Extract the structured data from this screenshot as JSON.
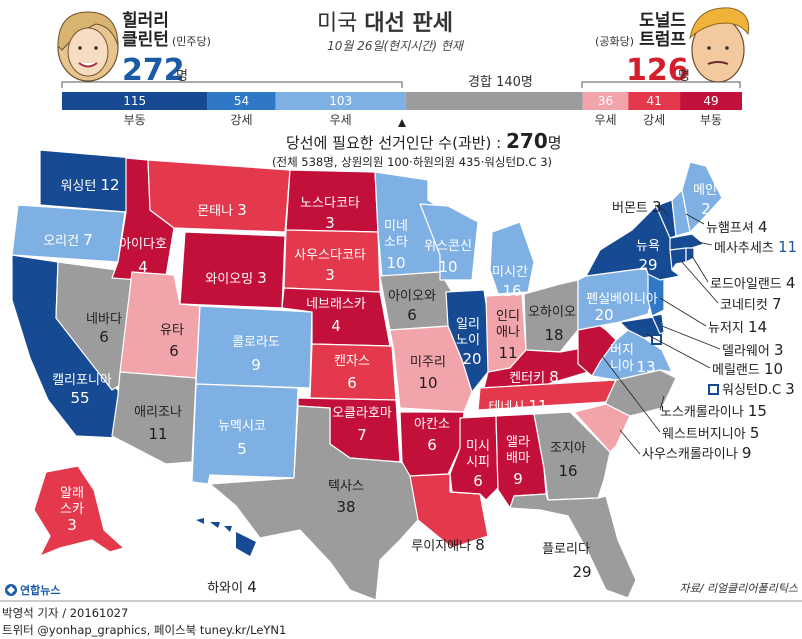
{
  "title": {
    "prefix": "미국",
    "main": "대선 판세"
  },
  "subtitle": "10월 26일(현지시간) 현재",
  "candidates": {
    "dem": {
      "name_line1": "힐러리",
      "name_line2": "클린턴",
      "party": "(민주당)",
      "votes": "272",
      "unit": "명"
    },
    "rep": {
      "name_line1": "도널드",
      "name_line2": "트럼프",
      "party": "(공화당)",
      "votes": "126",
      "unit": "명"
    }
  },
  "toss_up": {
    "label": "경합",
    "value": "140",
    "unit": "명"
  },
  "colors": {
    "solid_dem": "#164a93",
    "likely_dem": "#2f78c8",
    "lean_dem": "#7fb0e3",
    "tossup": "#9c9c9c",
    "lean_rep": "#f2a4ab",
    "likely_rep": "#e4394c",
    "solid_rep": "#c3103a"
  },
  "bar": [
    {
      "key": "solid_dem",
      "value": "115",
      "label": "부동"
    },
    {
      "key": "likely_dem",
      "value": "54",
      "label": "강세"
    },
    {
      "key": "lean_dem",
      "value": "103",
      "label": "우세"
    },
    {
      "key": "tossup",
      "value": "140",
      "label": ""
    },
    {
      "key": "lean_rep",
      "value": "36",
      "label": "우세"
    },
    {
      "key": "likely_rep",
      "value": "41",
      "label": "강세"
    },
    {
      "key": "solid_rep",
      "value": "49",
      "label": "부동"
    }
  ],
  "needed": {
    "text": "당선에 필요한 선거인단 수(과반) :",
    "value": "270",
    "unit": "명",
    "detail": "(전체 538명, 상원의원 100·하원의원 435·워싱턴D.C 3)"
  },
  "states": {
    "wa": {
      "name": "워싱턴",
      "ev": "12"
    },
    "or": {
      "name": "오리건",
      "ev": "7"
    },
    "ca": {
      "name": "캘리포니아",
      "ev": "55"
    },
    "nv": {
      "name": "네바다",
      "ev": "6"
    },
    "id": {
      "name": "아이다호",
      "ev": "4"
    },
    "mt": {
      "name": "몬태나",
      "ev": "3"
    },
    "wy": {
      "name": "와이오밍",
      "ev": "3"
    },
    "ut": {
      "name": "유타",
      "ev": "6"
    },
    "az": {
      "name": "애리조나",
      "ev": "11"
    },
    "co": {
      "name": "콜로라도",
      "ev": "9"
    },
    "nm": {
      "name": "뉴멕시코",
      "ev": "5"
    },
    "nd": {
      "name": "노스다코타",
      "ev": "3"
    },
    "sd": {
      "name": "사우스다코타",
      "ev": "3"
    },
    "ne": {
      "name": "네브래스카",
      "ev": "4"
    },
    "ks": {
      "name": "캔자스",
      "ev": "6"
    },
    "ok": {
      "name": "오클라호마",
      "ev": "7"
    },
    "tx": {
      "name": "텍사스",
      "ev": "38"
    },
    "mn": {
      "name": "미네소타",
      "ev": "10"
    },
    "ia": {
      "name": "아이오와",
      "ev": "6"
    },
    "mo": {
      "name": "미주리",
      "ev": "10"
    },
    "ar": {
      "name": "아칸소",
      "ev": "6"
    },
    "la": {
      "name": "루이지애나",
      "ev": "8"
    },
    "wi": {
      "name": "위스콘신",
      "ev": "10"
    },
    "il": {
      "name": "일리노이",
      "ev": "20"
    },
    "mi": {
      "name": "미시간",
      "ev": "16"
    },
    "in": {
      "name": "인디애나",
      "ev": "11"
    },
    "oh": {
      "name": "오하이오",
      "ev": "18"
    },
    "ky": {
      "name": "켄터키",
      "ev": "8"
    },
    "tn": {
      "name": "테네시",
      "ev": "11"
    },
    "ms": {
      "name": "미시시피",
      "ev": "6"
    },
    "al": {
      "name": "앨라배마",
      "ev": "9"
    },
    "ga": {
      "name": "조지아",
      "ev": "16"
    },
    "fl": {
      "name": "플로리다",
      "ev": "29"
    },
    "pa": {
      "name": "펜실베이니아",
      "ev": "20"
    },
    "ny": {
      "name": "뉴욕",
      "ev": "29"
    },
    "va": {
      "name": "버지니아",
      "ev": "13"
    },
    "me": {
      "name": "메인",
      "ev": "2"
    },
    "ak": {
      "name": "알래스카",
      "ev": "3"
    },
    "hi": {
      "name": "하와이",
      "ev": "4"
    }
  },
  "callouts": [
    {
      "name": "버몬트",
      "ev": "3"
    },
    {
      "name": "뉴햄프셔",
      "ev": "4"
    },
    {
      "name": "메사추세츠",
      "ev": "11"
    },
    {
      "name": "로드아일랜드",
      "ev": "4"
    },
    {
      "name": "코네티컷",
      "ev": "7"
    },
    {
      "name": "뉴저지",
      "ev": "14"
    },
    {
      "name": "델라웨어",
      "ev": "3"
    },
    {
      "name": "메릴랜드",
      "ev": "10"
    },
    {
      "name": "워싱턴D.C",
      "ev": "3"
    },
    {
      "name": "노스캐롤라이나",
      "ev": "15"
    },
    {
      "name": "웨스트버지니아",
      "ev": "5"
    },
    {
      "name": "사우스캐롤라이나",
      "ev": "9"
    }
  ],
  "footer": {
    "logo": "연합뉴스",
    "author": "박영석 기자 / 20161027",
    "sns": "트위터 @yonhap_graphics, 페이스북 tuney.kr/LeYN1",
    "source": "자료/ 리얼클리어폴리틱스"
  }
}
